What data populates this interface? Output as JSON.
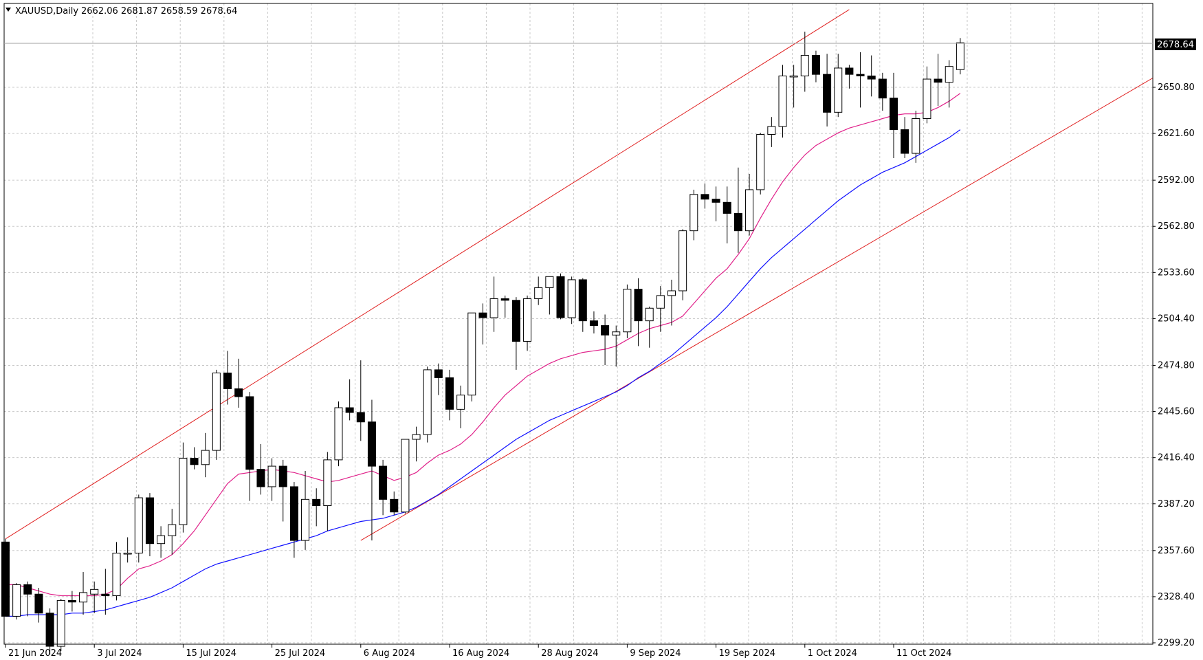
{
  "header": {
    "symbol": "XAUUSD,Daily",
    "ohlc": "2662.06 2681.87 2658.59 2678.64"
  },
  "price_label": "2678.64",
  "colors": {
    "background": "#ffffff",
    "grid": "#c8c8c8",
    "candle_bull": "#ffffff",
    "candle_bear": "#000000",
    "wick": "#000000",
    "ma_fast": "#e0218a",
    "ma_slow": "#1010ff",
    "channel": "#e02020"
  },
  "chart_data": {
    "type": "candlestick",
    "symbol": "XAUUSD",
    "timeframe": "Daily",
    "y_ticks": [
      "2299.20",
      "2328.40",
      "2357.60",
      "2387.20",
      "2416.40",
      "2445.60",
      "2474.80",
      "2504.40",
      "2533.60",
      "2562.80",
      "2592.00",
      "2621.60",
      "2650.80",
      "2678.64"
    ],
    "x_labels": [
      "21 Jun 2024",
      "3 Jul 2024",
      "15 Jul 2024",
      "25 Jul 2024",
      "6 Aug 2024",
      "16 Aug 2024",
      "28 Aug 2024",
      "9 Sep 2024",
      "19 Sep 2024",
      "1 Oct 2024",
      "11 Oct 2024"
    ],
    "x_label_index": [
      0,
      8,
      16,
      24,
      32,
      40,
      48,
      56,
      64,
      72,
      80
    ],
    "ylim": [
      2290,
      2690
    ],
    "grid": true,
    "candles": [
      [
        2363,
        2365,
        2316,
        2316
      ],
      [
        2316,
        2337,
        2314,
        2336
      ],
      [
        2336,
        2338,
        2316,
        2330
      ],
      [
        2330,
        2334,
        2312,
        2318
      ],
      [
        2318,
        2321,
        2292,
        2297
      ],
      [
        2297,
        2327,
        2294,
        2326
      ],
      [
        2326,
        2332,
        2319,
        2325
      ],
      [
        2325,
        2344,
        2317,
        2331
      ],
      [
        2330,
        2338,
        2318,
        2333
      ],
      [
        2330,
        2346,
        2317,
        2329
      ],
      [
        2329,
        2363,
        2326,
        2356
      ],
      [
        2356,
        2366,
        2350,
        2356
      ],
      [
        2356,
        2393,
        2350,
        2391
      ],
      [
        2391,
        2394,
        2354,
        2362
      ],
      [
        2362,
        2373,
        2353,
        2367
      ],
      [
        2367,
        2384,
        2355,
        2374
      ],
      [
        2374,
        2426,
        2369,
        2416
      ],
      [
        2416,
        2423,
        2409,
        2412
      ],
      [
        2412,
        2432,
        2404,
        2421
      ],
      [
        2421,
        2472,
        2415,
        2470
      ],
      [
        2470,
        2484,
        2450,
        2460
      ],
      [
        2460,
        2479,
        2448,
        2455
      ],
      [
        2455,
        2458,
        2389,
        2409
      ],
      [
        2409,
        2425,
        2393,
        2398
      ],
      [
        2398,
        2416,
        2389,
        2411
      ],
      [
        2411,
        2415,
        2376,
        2398
      ],
      [
        2398,
        2401,
        2353,
        2364
      ],
      [
        2364,
        2408,
        2358,
        2390
      ],
      [
        2390,
        2397,
        2373,
        2386
      ],
      [
        2386,
        2420,
        2370,
        2415
      ],
      [
        2415,
        2452,
        2411,
        2448
      ],
      [
        2448,
        2466,
        2440,
        2445
      ],
      [
        2445,
        2478,
        2427,
        2439
      ],
      [
        2439,
        2453,
        2364,
        2411
      ],
      [
        2411,
        2415,
        2380,
        2390
      ],
      [
        2390,
        2395,
        2380,
        2382
      ],
      [
        2382,
        2428,
        2381,
        2428
      ],
      [
        2428,
        2436,
        2414,
        2431
      ],
      [
        2431,
        2474,
        2426,
        2472
      ],
      [
        2472,
        2476,
        2456,
        2467
      ],
      [
        2467,
        2472,
        2440,
        2447
      ],
      [
        2447,
        2462,
        2435,
        2456
      ],
      [
        2456,
        2508,
        2452,
        2508
      ],
      [
        2508,
        2514,
        2488,
        2505
      ],
      [
        2505,
        2531,
        2496,
        2517
      ],
      [
        2517,
        2519,
        2505,
        2516
      ],
      [
        2516,
        2518,
        2472,
        2490
      ],
      [
        2490,
        2519,
        2484,
        2517
      ],
      [
        2517,
        2531,
        2513,
        2524
      ],
      [
        2524,
        2531,
        2507,
        2531
      ],
      [
        2531,
        2533,
        2504,
        2505
      ],
      [
        2505,
        2531,
        2501,
        2529
      ],
      [
        2529,
        2530,
        2496,
        2503
      ],
      [
        2503,
        2509,
        2495,
        2500
      ],
      [
        2500,
        2507,
        2475,
        2494
      ],
      [
        2494,
        2500,
        2474,
        2496
      ],
      [
        2496,
        2526,
        2492,
        2523
      ],
      [
        2523,
        2530,
        2487,
        2503
      ],
      [
        2503,
        2512,
        2486,
        2511
      ],
      [
        2511,
        2525,
        2496,
        2519
      ],
      [
        2519,
        2529,
        2500,
        2522
      ],
      [
        2522,
        2561,
        2516,
        2560
      ],
      [
        2560,
        2586,
        2554,
        2583
      ],
      [
        2583,
        2590,
        2574,
        2580
      ],
      [
        2580,
        2588,
        2566,
        2578
      ],
      [
        2578,
        2588,
        2552,
        2571
      ],
      [
        2571,
        2600,
        2546,
        2560
      ],
      [
        2560,
        2596,
        2557,
        2586
      ],
      [
        2586,
        2622,
        2583,
        2621
      ],
      [
        2621,
        2632,
        2613,
        2626
      ],
      [
        2626,
        2665,
        2619,
        2658
      ],
      [
        2658,
        2665,
        2638,
        2658
      ],
      [
        2658,
        2686,
        2648,
        2671
      ],
      [
        2671,
        2674,
        2654,
        2659
      ],
      [
        2659,
        2672,
        2626,
        2635
      ],
      [
        2635,
        2672,
        2632,
        2663
      ],
      [
        2663,
        2665,
        2650,
        2659
      ],
      [
        2659,
        2673,
        2638,
        2658
      ],
      [
        2658,
        2671,
        2645,
        2656
      ],
      [
        2656,
        2660,
        2636,
        2644
      ],
      [
        2644,
        2660,
        2606,
        2624
      ],
      [
        2624,
        2632,
        2606,
        2609
      ],
      [
        2609,
        2636,
        2603,
        2631
      ],
      [
        2631,
        2664,
        2628,
        2656
      ],
      [
        2656,
        2672,
        2639,
        2654
      ],
      [
        2654,
        2668,
        2638,
        2664
      ],
      [
        2662,
        2682,
        2659,
        2679
      ]
    ],
    "series": [
      {
        "kind": "ma_fast",
        "start_index": 0,
        "values": [
          2336,
          2336,
          2334,
          2332,
          2330,
          2329,
          2329,
          2329,
          2329,
          2330,
          2333,
          2340,
          2346,
          2348,
          2351,
          2355,
          2362,
          2370,
          2380,
          2390,
          2400,
          2406,
          2407,
          2408,
          2409,
          2408,
          2407,
          2405,
          2403,
          2401,
          2402,
          2404,
          2406,
          2408,
          2405,
          2402,
          2404,
          2407,
          2413,
          2418,
          2421,
          2425,
          2431,
          2439,
          2448,
          2456,
          2462,
          2468,
          2472,
          2476,
          2479,
          2481,
          2483,
          2484,
          2485,
          2487,
          2491,
          2495,
          2498,
          2500,
          2502,
          2506,
          2514,
          2522,
          2530,
          2536,
          2545,
          2555,
          2568,
          2580,
          2591,
          2600,
          2608,
          2614,
          2618,
          2622,
          2625,
          2627,
          2629,
          2631,
          2633,
          2634,
          2634,
          2635,
          2638,
          2642,
          2647
        ]
      },
      {
        "kind": "ma_slow",
        "start_index": 0,
        "values": [
          2316,
          2316,
          2317,
          2317,
          2317,
          2317,
          2318,
          2318,
          2319,
          2320,
          2322,
          2324,
          2326,
          2328,
          2331,
          2334,
          2338,
          2342,
          2346,
          2349,
          2351,
          2353,
          2355,
          2357,
          2359,
          2361,
          2363,
          2365,
          2367,
          2370,
          2372,
          2374,
          2376,
          2377,
          2378,
          2380,
          2382,
          2385,
          2389,
          2393,
          2398,
          2403,
          2408,
          2413,
          2418,
          2423,
          2428,
          2432,
          2436,
          2440,
          2443,
          2446,
          2449,
          2452,
          2455,
          2458,
          2462,
          2467,
          2471,
          2476,
          2481,
          2487,
          2493,
          2499,
          2505,
          2512,
          2520,
          2528,
          2536,
          2543,
          2549,
          2555,
          2561,
          2567,
          2573,
          2579,
          2584,
          2589,
          2593,
          2597,
          2600,
          2603,
          2607,
          2611,
          2615,
          2619,
          2624
        ]
      }
    ],
    "channel_upper": {
      "from": [
        0,
        2365
      ],
      "to": [
        76,
        2700
      ]
    },
    "channel_lower": {
      "from": [
        32,
        2364
      ],
      "to": [
        110,
        2684
      ]
    }
  }
}
